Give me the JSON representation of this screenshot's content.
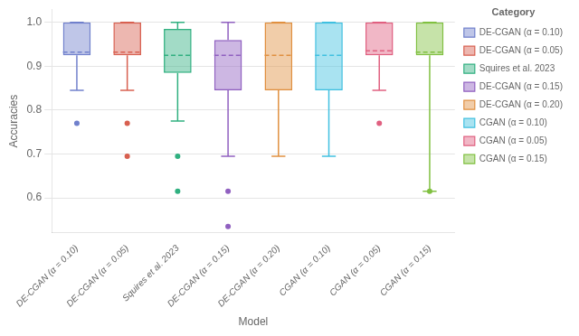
{
  "chart_data": {
    "type": "box",
    "xlabel": "Model",
    "ylabel": "Accuracies",
    "categories": [
      "DE-CGAN (α = 0.10)",
      "DE-CGAN (α = 0.05)",
      "Squires et al. 2023",
      "DE-CGAN (α = 0.15)",
      "DE-CGAN (α = 0.20)",
      "CGAN (α = 0.10)",
      "CGAN (α = 0.05)",
      "CGAN (α = 0.15)"
    ],
    "boxes": [
      {
        "whislo": 0.845,
        "q1": 0.925,
        "med": 0.932,
        "q3": 1.0,
        "whishi": 1.0,
        "fliers": [
          0.77
        ]
      },
      {
        "whislo": 0.845,
        "q1": 0.925,
        "med": 0.932,
        "q3": 1.0,
        "whishi": 1.0,
        "fliers": [
          0.77,
          0.695
        ]
      },
      {
        "whislo": 0.775,
        "q1": 0.885,
        "med": 0.925,
        "q3": 0.985,
        "whishi": 1.0,
        "fliers": [
          0.695,
          0.615
        ]
      },
      {
        "whislo": 0.695,
        "q1": 0.845,
        "med": 0.925,
        "q3": 0.96,
        "whishi": 1.0,
        "fliers": [
          0.615,
          0.535
        ]
      },
      {
        "whislo": 0.695,
        "q1": 0.845,
        "med": 0.925,
        "q3": 1.0,
        "whishi": 1.0,
        "fliers": []
      },
      {
        "whislo": 0.695,
        "q1": 0.845,
        "med": 0.925,
        "q3": 1.0,
        "whishi": 1.0,
        "fliers": []
      },
      {
        "whislo": 0.845,
        "q1": 0.925,
        "med": 0.935,
        "q3": 1.0,
        "whishi": 1.0,
        "fliers": [
          0.77
        ]
      },
      {
        "whislo": 0.615,
        "q1": 0.925,
        "med": 0.932,
        "q3": 1.0,
        "whishi": 1.0,
        "fliers": [
          0.615
        ]
      }
    ],
    "colors": [
      "#7080CC",
      "#D86050",
      "#30B080",
      "#9060C0",
      "#E09040",
      "#40C0E0",
      "#E06080",
      "#80C040"
    ],
    "ylim": [
      0.52,
      1.03
    ],
    "yticks": [
      0.6,
      0.7,
      0.8,
      0.9,
      {
        "value": 1,
        "label": "1.0"
      }
    ],
    "grid": true,
    "legend": "right",
    "legend_title": "Category"
  }
}
